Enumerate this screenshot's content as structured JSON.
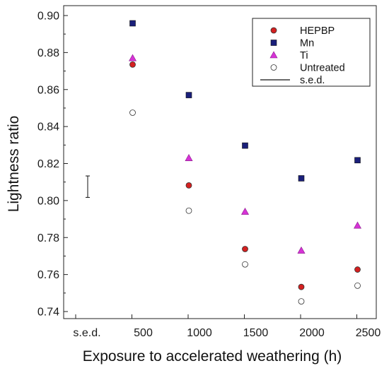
{
  "chart_data": {
    "type": "scatter",
    "title": "",
    "xlabel": "Exposure to accelerated weathering (h)",
    "ylabel": "Lightness ratio",
    "x_categories": [
      "s.e.d.",
      "500",
      "1000",
      "1500",
      "2000",
      "2500"
    ],
    "x": [
      500,
      1000,
      1500,
      2000,
      2500
    ],
    "ylim": [
      0.74,
      0.9
    ],
    "y_ticks": [
      "0.74",
      "0.76",
      "0.78",
      "0.80",
      "0.82",
      "0.84",
      "0.86",
      "0.88",
      "0.90"
    ],
    "grid": false,
    "legend_position": "top-right",
    "series": [
      {
        "name": "HEPBP",
        "marker": "circle",
        "color": "#d42020",
        "values": [
          0.8735,
          0.8082,
          0.7738,
          0.7533,
          0.7627
        ]
      },
      {
        "name": "Mn",
        "marker": "square",
        "color": "#1a1f7a",
        "values": [
          0.8958,
          0.857,
          0.8297,
          0.812,
          0.8218
        ]
      },
      {
        "name": "Ti",
        "marker": "triangle",
        "color": "#d633d6",
        "values": [
          0.877,
          0.823,
          0.794,
          0.773,
          0.7865
        ]
      },
      {
        "name": "Untreated",
        "marker": "open-circle",
        "color": "#ffffff",
        "values": [
          0.8475,
          0.7945,
          0.7655,
          0.7455,
          0.754
        ]
      }
    ],
    "sed": {
      "label": "s.e.d.",
      "center": 0.8075,
      "low": 0.8017,
      "high": 0.8133
    }
  }
}
